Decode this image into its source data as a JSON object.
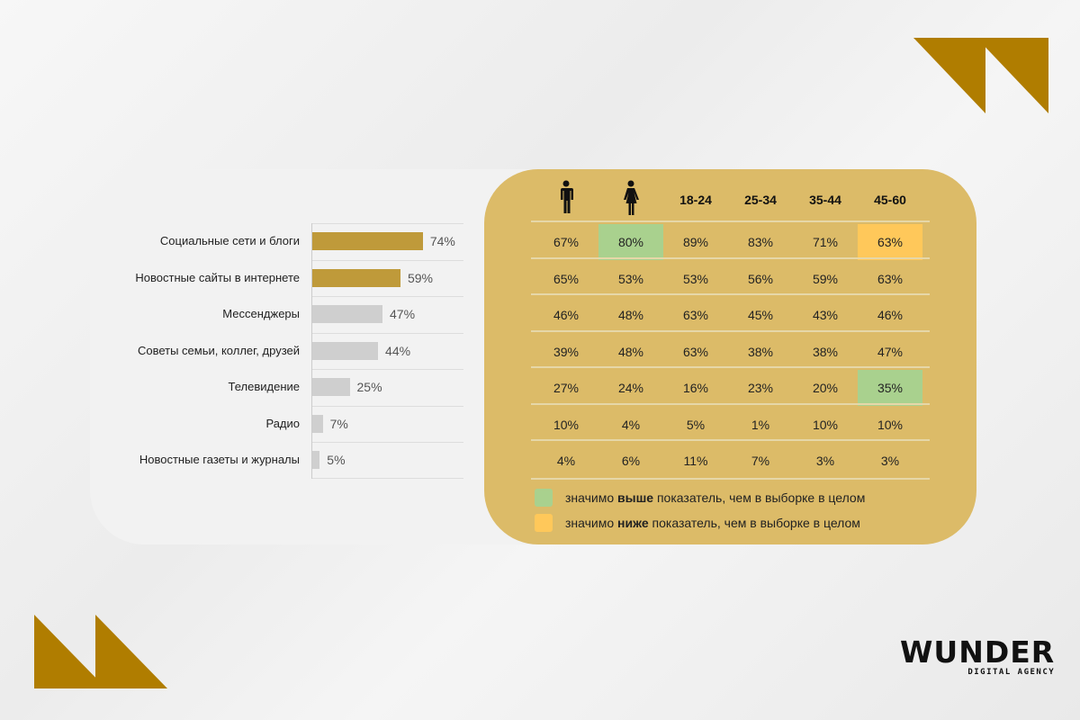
{
  "chart_data": {
    "type": "bar",
    "orientation": "horizontal",
    "categories": [
      "Социальные сети и блоги",
      "Новостные сайты в интернете",
      "Мессенджеры",
      "Советы семьи, коллег, друзей",
      "Телевидение",
      "Радио",
      "Новостные газеты и журналы"
    ],
    "values": [
      74,
      59,
      47,
      44,
      25,
      7,
      5
    ],
    "value_labels": [
      "74%",
      "59%",
      "47%",
      "44%",
      "25%",
      "7%",
      "5%"
    ],
    "highlighted": [
      true,
      true,
      false,
      false,
      false,
      false,
      false
    ],
    "xlim": [
      0,
      100
    ],
    "colors": {
      "highlight": "#bf9a3a",
      "default": "#cfcfcf"
    }
  },
  "table": {
    "headers": [
      {
        "icon": "male-icon"
      },
      {
        "icon": "female-icon"
      },
      {
        "label": "18-24"
      },
      {
        "label": "25-34"
      },
      {
        "label": "35-44"
      },
      {
        "label": "45-60"
      }
    ],
    "rows": [
      [
        "67%",
        "80%",
        "89%",
        "83%",
        "71%",
        "63%"
      ],
      [
        "65%",
        "53%",
        "53%",
        "56%",
        "59%",
        "63%"
      ],
      [
        "46%",
        "48%",
        "63%",
        "45%",
        "43%",
        "46%"
      ],
      [
        "39%",
        "48%",
        "63%",
        "38%",
        "38%",
        "47%"
      ],
      [
        "27%",
        "24%",
        "16%",
        "23%",
        "20%",
        "35%"
      ],
      [
        "10%",
        "4%",
        "5%",
        "1%",
        "10%",
        "10%"
      ],
      [
        "4%",
        "6%",
        "11%",
        "7%",
        "3%",
        "3%"
      ]
    ],
    "highlights": [
      {
        "row": 0,
        "col": 1,
        "type": "higher"
      },
      {
        "row": 0,
        "col": 5,
        "type": "lower"
      },
      {
        "row": 4,
        "col": 5,
        "type": "higher"
      }
    ],
    "colors": {
      "higher": "#a9d18e",
      "lower": "#ffc85a",
      "panel": "#dcbb68"
    }
  },
  "legend": [
    {
      "type": "higher",
      "pre": "значимо ",
      "bold": "выше",
      "post": " показатель, чем в выборке в целом"
    },
    {
      "type": "lower",
      "pre": "значимо ",
      "bold": "ниже",
      "post": " показатель, чем в выборке в целом"
    }
  ],
  "logo": {
    "name": "WUNDER",
    "tagline": "DIGITAL AGENCY"
  },
  "accent": "#b07d00"
}
